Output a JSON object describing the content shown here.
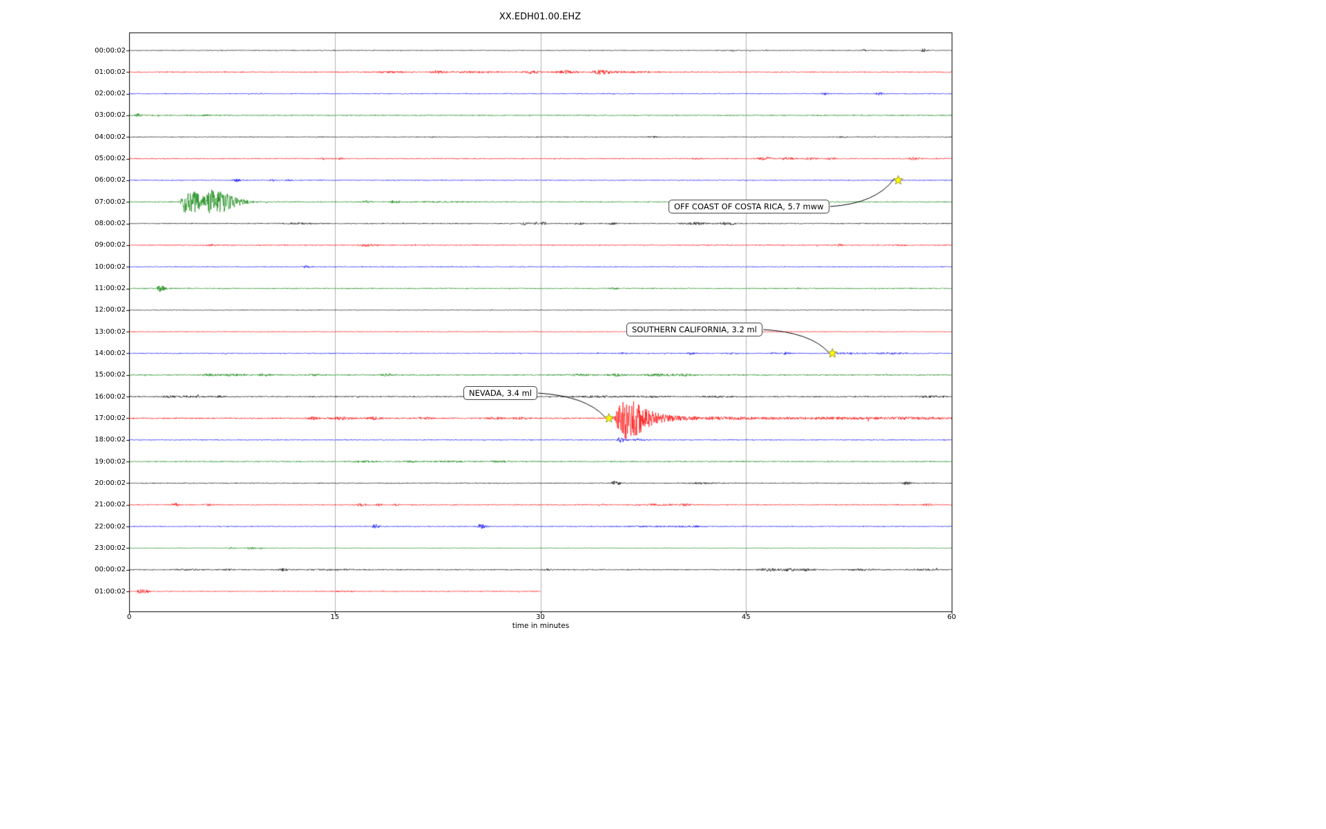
{
  "chart_data": {
    "type": "line",
    "title": "XX.EDH01.00.EHZ",
    "xlabel": "time in minutes",
    "xlim": [
      0,
      60
    ],
    "x_ticks": [
      0,
      15,
      30,
      45,
      60
    ],
    "grid": {
      "vertical_minutes": [
        15,
        30,
        45
      ],
      "grid_color": "#b0b0b0"
    },
    "palette_cycle": [
      "#000000",
      "#ff0000",
      "#0000ff",
      "#008000"
    ],
    "event_marker_color": "#ffff00",
    "rows": [
      {
        "label": "00:00:02",
        "color": "#000000",
        "duration": 60,
        "base_amp": 0.55,
        "bursts": [
          [
            44.2,
            0.3,
            0.3,
            0.8
          ],
          [
            53.6,
            0.15,
            0.15,
            1.2
          ],
          [
            57.9,
            0.12,
            0.25,
            2.6
          ]
        ]
      },
      {
        "label": "01:00:02",
        "color": "#ff0000",
        "duration": 60,
        "base_amp": 0.75,
        "bursts": [
          [
            19.0,
            1.0,
            1.0,
            0.8
          ],
          [
            22.4,
            0.4,
            0.6,
            1.8
          ],
          [
            25.0,
            1.5,
            1.5,
            0.9
          ],
          [
            29.3,
            0.5,
            0.7,
            2.0
          ],
          [
            31.8,
            0.5,
            0.8,
            2.2
          ],
          [
            34.2,
            0.4,
            0.9,
            3.2
          ],
          [
            36.5,
            1.5,
            2.0,
            0.8
          ]
        ]
      },
      {
        "label": "02:00:02",
        "color": "#0000ff",
        "duration": 60,
        "base_amp": 0.6,
        "bursts": [
          [
            50.7,
            0.15,
            0.25,
            1.8
          ],
          [
            54.7,
            0.2,
            0.3,
            2.2
          ]
        ]
      },
      {
        "label": "03:00:02",
        "color": "#008000",
        "duration": 60,
        "base_amp": 0.7,
        "bursts": [
          [
            0.6,
            0.15,
            0.3,
            2.0
          ],
          [
            5.5,
            1.0,
            1.0,
            0.5
          ]
        ]
      },
      {
        "label": "04:00:02",
        "color": "#000000",
        "duration": 60,
        "base_amp": 0.6,
        "bursts": [
          [
            38.2,
            0.3,
            0.3,
            0.9
          ],
          [
            52.0,
            0.2,
            0.3,
            1.0
          ]
        ]
      },
      {
        "label": "05:00:02",
        "color": "#ff0000",
        "duration": 60,
        "base_amp": 0.7,
        "bursts": [
          [
            14.2,
            0.15,
            0.2,
            1.2
          ],
          [
            15.4,
            0.15,
            0.2,
            1.1
          ],
          [
            41.3,
            0.3,
            0.3,
            0.8
          ],
          [
            46.3,
            0.4,
            0.6,
            1.8
          ],
          [
            48.0,
            0.4,
            0.6,
            1.6
          ],
          [
            49.6,
            0.3,
            0.5,
            1.4
          ],
          [
            51.2,
            0.3,
            0.4,
            1.3
          ],
          [
            57.2,
            0.3,
            0.5,
            1.8
          ]
        ]
      },
      {
        "label": "06:00:02",
        "color": "#0000ff",
        "duration": 60,
        "base_amp": 0.6,
        "bursts": [
          [
            7.9,
            0.3,
            0.5,
            1.6
          ],
          [
            10.4,
            0.2,
            0.3,
            1.2
          ],
          [
            11.6,
            0.2,
            0.3,
            1.0
          ]
        ]
      },
      {
        "label": "07:00:02",
        "color": "#008000",
        "duration": 60,
        "base_amp": 0.7,
        "bursts": [
          [
            4.1,
            0.25,
            0.8,
            16
          ],
          [
            4.9,
            0.3,
            1.2,
            8
          ],
          [
            5.9,
            0.2,
            1.5,
            14
          ],
          [
            7.0,
            0.5,
            1.5,
            5
          ],
          [
            17.2,
            0.4,
            0.5,
            1.2
          ],
          [
            19.3,
            0.3,
            0.5,
            1.5
          ],
          [
            23.0,
            2.0,
            2.0,
            0.5
          ]
        ]
      },
      {
        "label": "08:00:02",
        "color": "#000000",
        "duration": 60,
        "base_amp": 0.7,
        "bursts": [
          [
            12.5,
            1.2,
            1.2,
            0.8
          ],
          [
            28.8,
            0.2,
            0.3,
            2.2
          ],
          [
            29.6,
            0.15,
            0.2,
            2.5
          ],
          [
            30.2,
            0.15,
            0.25,
            2.0
          ],
          [
            32.9,
            0.2,
            0.3,
            1.2
          ],
          [
            35.2,
            0.2,
            0.3,
            1.5
          ],
          [
            41.3,
            0.8,
            0.8,
            1.5
          ],
          [
            43.4,
            0.3,
            0.4,
            1.8
          ],
          [
            44.0,
            0.2,
            0.3,
            1.2
          ]
        ]
      },
      {
        "label": "09:00:02",
        "color": "#ff0000",
        "duration": 60,
        "base_amp": 0.7,
        "bursts": [
          [
            5.9,
            0.3,
            0.4,
            0.9
          ],
          [
            17.3,
            0.6,
            0.8,
            1.2
          ],
          [
            51.8,
            0.2,
            0.3,
            1.3
          ],
          [
            56.3,
            0.3,
            0.4,
            0.9
          ]
        ]
      },
      {
        "label": "10:00:02",
        "color": "#0000ff",
        "duration": 60,
        "base_amp": 0.6,
        "bursts": [
          [
            12.9,
            0.25,
            0.35,
            1.6
          ]
        ]
      },
      {
        "label": "11:00:02",
        "color": "#008000",
        "duration": 60,
        "base_amp": 0.7,
        "bursts": [
          [
            2.2,
            0.15,
            0.45,
            4.5
          ],
          [
            35.3,
            0.2,
            0.3,
            1.2
          ]
        ]
      },
      {
        "label": "12:00:02",
        "color": "#000000",
        "duration": 60,
        "base_amp": 0.5,
        "bursts": []
      },
      {
        "label": "13:00:02",
        "color": "#ff0000",
        "duration": 60,
        "base_amp": 0.55,
        "bursts": []
      },
      {
        "label": "14:00:02",
        "color": "#0000ff",
        "duration": 60,
        "base_amp": 0.65,
        "bursts": [
          [
            36.0,
            0.2,
            0.3,
            1.4
          ],
          [
            41.0,
            0.2,
            0.3,
            1.5
          ],
          [
            44.0,
            0.5,
            0.5,
            0.8
          ],
          [
            46.9,
            0.2,
            0.3,
            1.2
          ],
          [
            47.9,
            0.2,
            0.3,
            1.6
          ],
          [
            52.5,
            1.0,
            1.0,
            0.9
          ],
          [
            56.0,
            1.5,
            1.5,
            0.8
          ]
        ]
      },
      {
        "label": "15:00:02",
        "color": "#008000",
        "duration": 60,
        "base_amp": 0.8,
        "bursts": [
          [
            5.8,
            0.4,
            0.6,
            1.5
          ],
          [
            7.5,
            0.8,
            1.0,
            1.2
          ],
          [
            9.8,
            0.4,
            0.6,
            1.4
          ],
          [
            13.5,
            0.5,
            0.5,
            0.9
          ],
          [
            18.7,
            0.3,
            0.4,
            1.3
          ],
          [
            33.0,
            1.0,
            1.0,
            1.2
          ],
          [
            35.5,
            0.5,
            0.7,
            1.5
          ],
          [
            38.5,
            1.0,
            1.2,
            1.4
          ],
          [
            40.5,
            0.5,
            0.6,
            1.3
          ]
        ]
      },
      {
        "label": "16:00:02",
        "color": "#000000",
        "duration": 60,
        "base_amp": 0.8,
        "bursts": [
          [
            2.8,
            0.4,
            0.5,
            1.2
          ],
          [
            4.5,
            1.0,
            1.0,
            0.8
          ],
          [
            6.6,
            0.3,
            0.4,
            1.1
          ],
          [
            34.0,
            1.5,
            2.0,
            0.9
          ],
          [
            38.0,
            1.0,
            1.0,
            0.8
          ],
          [
            43.0,
            1.0,
            1.0,
            0.9
          ],
          [
            58.5,
            1.0,
            1.0,
            1.0
          ]
        ]
      },
      {
        "label": "17:00:02",
        "color": "#ff0000",
        "duration": 60,
        "base_amp": 0.9,
        "bursts": [
          [
            13.4,
            0.3,
            0.4,
            1.8
          ],
          [
            15.5,
            0.8,
            1.0,
            1.6
          ],
          [
            17.8,
            0.4,
            0.5,
            1.7
          ],
          [
            21.5,
            0.5,
            0.6,
            1.3
          ],
          [
            26.6,
            0.5,
            0.6,
            1.5
          ],
          [
            28.5,
            0.5,
            0.6,
            1.2
          ],
          [
            35.8,
            0.25,
            1.6,
            26
          ],
          [
            36.3,
            0.3,
            2.5,
            10
          ],
          [
            40.0,
            2.0,
            3.0,
            2.0
          ],
          [
            45.0,
            3.0,
            4.0,
            1.2
          ],
          [
            52.0,
            3.0,
            4.0,
            1.1
          ],
          [
            57.0,
            2.0,
            3.0,
            1.3
          ]
        ]
      },
      {
        "label": "18:00:02",
        "color": "#0000ff",
        "duration": 60,
        "base_amp": 0.65,
        "bursts": [
          [
            35.8,
            0.15,
            0.4,
            3.5
          ],
          [
            37.0,
            0.5,
            0.8,
            1.0
          ]
        ]
      },
      {
        "label": "19:00:02",
        "color": "#008000",
        "duration": 60,
        "base_amp": 0.75,
        "bursts": [
          [
            17.0,
            1.0,
            1.0,
            0.9
          ],
          [
            20.5,
            0.4,
            0.5,
            1.2
          ],
          [
            23.5,
            1.0,
            1.0,
            0.8
          ],
          [
            27.0,
            1.0,
            1.0,
            0.8
          ]
        ]
      },
      {
        "label": "20:00:02",
        "color": "#000000",
        "duration": 60,
        "base_amp": 0.65,
        "bursts": [
          [
            35.4,
            0.15,
            0.35,
            4.0
          ],
          [
            41.8,
            0.8,
            0.8,
            0.8
          ],
          [
            56.7,
            0.2,
            0.3,
            2.2
          ]
        ]
      },
      {
        "label": "21:00:02",
        "color": "#ff0000",
        "duration": 60,
        "base_amp": 0.7,
        "bursts": [
          [
            3.3,
            0.15,
            0.3,
            2.8
          ],
          [
            5.8,
            0.3,
            0.4,
            1.0
          ],
          [
            16.9,
            0.3,
            0.4,
            1.8
          ],
          [
            18.2,
            0.2,
            0.3,
            1.4
          ],
          [
            19.5,
            0.2,
            0.3,
            1.1
          ],
          [
            38.5,
            1.5,
            1.5,
            0.8
          ],
          [
            40.5,
            0.3,
            0.4,
            1.2
          ],
          [
            58.2,
            0.3,
            0.4,
            1.3
          ]
        ]
      },
      {
        "label": "22:00:02",
        "color": "#0000ff",
        "duration": 60,
        "base_amp": 0.65,
        "bursts": [
          [
            17.9,
            0.15,
            0.35,
            2.8
          ],
          [
            25.6,
            0.2,
            0.4,
            3.2
          ],
          [
            38.0,
            2.0,
            2.0,
            0.7
          ],
          [
            41.0,
            1.0,
            1.0,
            0.8
          ]
        ]
      },
      {
        "label": "23:00:02",
        "color": "#008000",
        "duration": 60,
        "base_amp": 0.45,
        "bursts": [
          [
            7.4,
            0.2,
            0.3,
            1.2
          ],
          [
            8.8,
            0.3,
            0.5,
            1.4
          ],
          [
            9.6,
            0.2,
            0.3,
            1.1
          ]
        ]
      },
      {
        "label": "00:00:02",
        "color": "#000000",
        "duration": 60,
        "base_amp": 0.7,
        "bursts": [
          [
            4.5,
            1.0,
            1.0,
            0.7
          ],
          [
            7.2,
            0.2,
            0.3,
            1.4
          ],
          [
            11.2,
            0.3,
            0.4,
            1.6
          ],
          [
            15.0,
            2.0,
            2.0,
            0.5
          ],
          [
            30.5,
            0.2,
            0.3,
            1.0
          ],
          [
            46.5,
            0.5,
            0.8,
            2.0
          ],
          [
            48.0,
            0.5,
            0.8,
            1.8
          ],
          [
            49.5,
            0.4,
            0.6,
            1.5
          ],
          [
            53.5,
            0.8,
            0.8,
            1.0
          ],
          [
            58.0,
            1.0,
            1.0,
            0.7
          ]
        ]
      },
      {
        "label": "01:00:02",
        "color": "#ff0000",
        "duration": 30,
        "base_amp": 0.6,
        "bursts": [
          [
            0.7,
            0.1,
            0.4,
            3.0
          ],
          [
            1.2,
            0.15,
            0.3,
            1.5
          ],
          [
            15.5,
            1.0,
            1.0,
            0.5
          ]
        ]
      }
    ],
    "events": [
      {
        "label": "OFF COAST OF COSTA RICA, 5.7 mww",
        "row": 6,
        "minute": 56.1
      },
      {
        "label": "SOUTHERN CALIFORNIA, 3.2 ml",
        "row": 14,
        "minute": 51.3
      },
      {
        "label": "NEVADA, 3.4 ml",
        "row": 17,
        "minute": 35.0
      }
    ]
  }
}
